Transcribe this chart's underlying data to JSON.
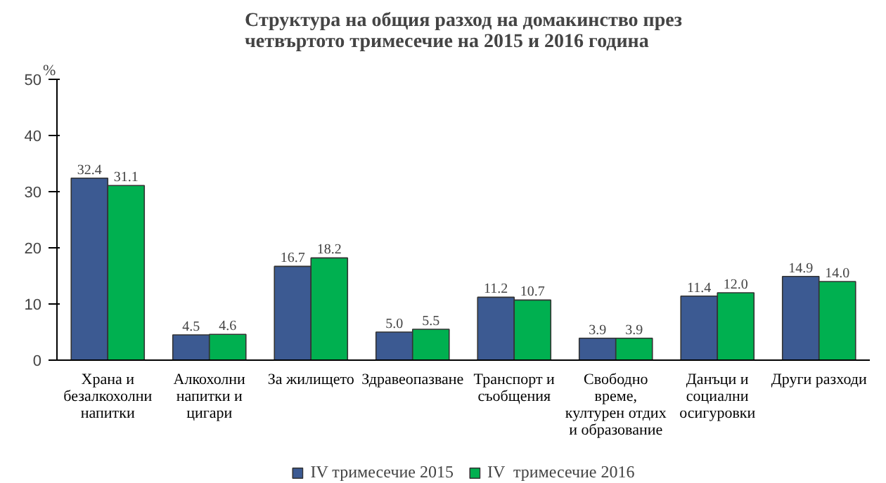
{
  "chart_data": {
    "type": "bar",
    "title": "Структура на общия разход на домакинство през четвъртото тримесечие на 2015 и 2016 година",
    "ylabel": "%",
    "categories": [
      "Храна и безалкохолни напитки",
      "Алкохолни напитки и цигари",
      "За жилището",
      "Здравеопазване",
      "Транспорт и съобщения",
      "Свободно време, културен отдих и образование",
      "Данъци и социални осигуровки",
      "Други разходи"
    ],
    "series": [
      {
        "name": "IV тримесечие 2015",
        "color": "#3c5a92",
        "values": [
          32.4,
          4.5,
          16.7,
          5.0,
          11.2,
          3.9,
          11.4,
          14.9
        ],
        "value_labels": [
          "32.4",
          "4.5",
          "16.7",
          "5.0",
          "11.2",
          "3.9",
          "11.4",
          "14.9"
        ]
      },
      {
        "name": "IV  тримесечие 2016",
        "color": "#00b050",
        "values": [
          31.1,
          4.6,
          18.2,
          5.5,
          10.7,
          3.9,
          12.0,
          14.0
        ],
        "value_labels": [
          "31.1",
          "4.6",
          "18.2",
          "5.5",
          "10.7",
          "3.9",
          "12.0",
          "14.0"
        ]
      }
    ],
    "ylim": [
      0,
      50
    ],
    "yticks": [
      0,
      10,
      20,
      30,
      40,
      50
    ],
    "legend": "bottom"
  }
}
